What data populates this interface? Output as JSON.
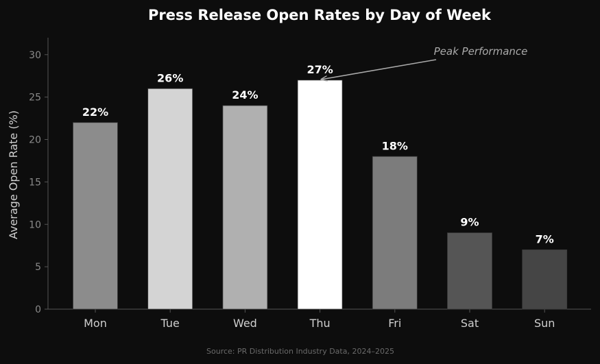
{
  "chart_data": {
    "type": "bar",
    "title": "Press Release Open Rates by Day of Week",
    "xlabel": "",
    "ylabel": "Average Open Rate (%)",
    "ylim": [
      0,
      32
    ],
    "yticks": [
      0,
      5,
      10,
      15,
      20,
      25,
      30
    ],
    "grid": false,
    "categories": [
      "Mon",
      "Tue",
      "Wed",
      "Thu",
      "Fri",
      "Sat",
      "Sun"
    ],
    "values": [
      22,
      26,
      24,
      27,
      18,
      9,
      7
    ],
    "value_labels": [
      "22%",
      "26%",
      "24%",
      "27%",
      "18%",
      "9%",
      "7%"
    ],
    "bar_colors": [
      "#8c8c8c",
      "#d4d4d4",
      "#b0b0b0",
      "#ffffff",
      "#7c7c7c",
      "#555555",
      "#454545"
    ],
    "annotation": {
      "text": "Peak Performance",
      "target_category": "Thu"
    },
    "source": "Source: PR Distribution Industry Data, 2024–2025"
  },
  "colors": {
    "background": "#0d0d0d",
    "text": "#ffffff",
    "axis": "#555555",
    "tick_text": "#8a8a8a",
    "category_text": "#cfcfcf",
    "annotation": "#aaaaaa",
    "source_text": "#6a6a6a"
  }
}
